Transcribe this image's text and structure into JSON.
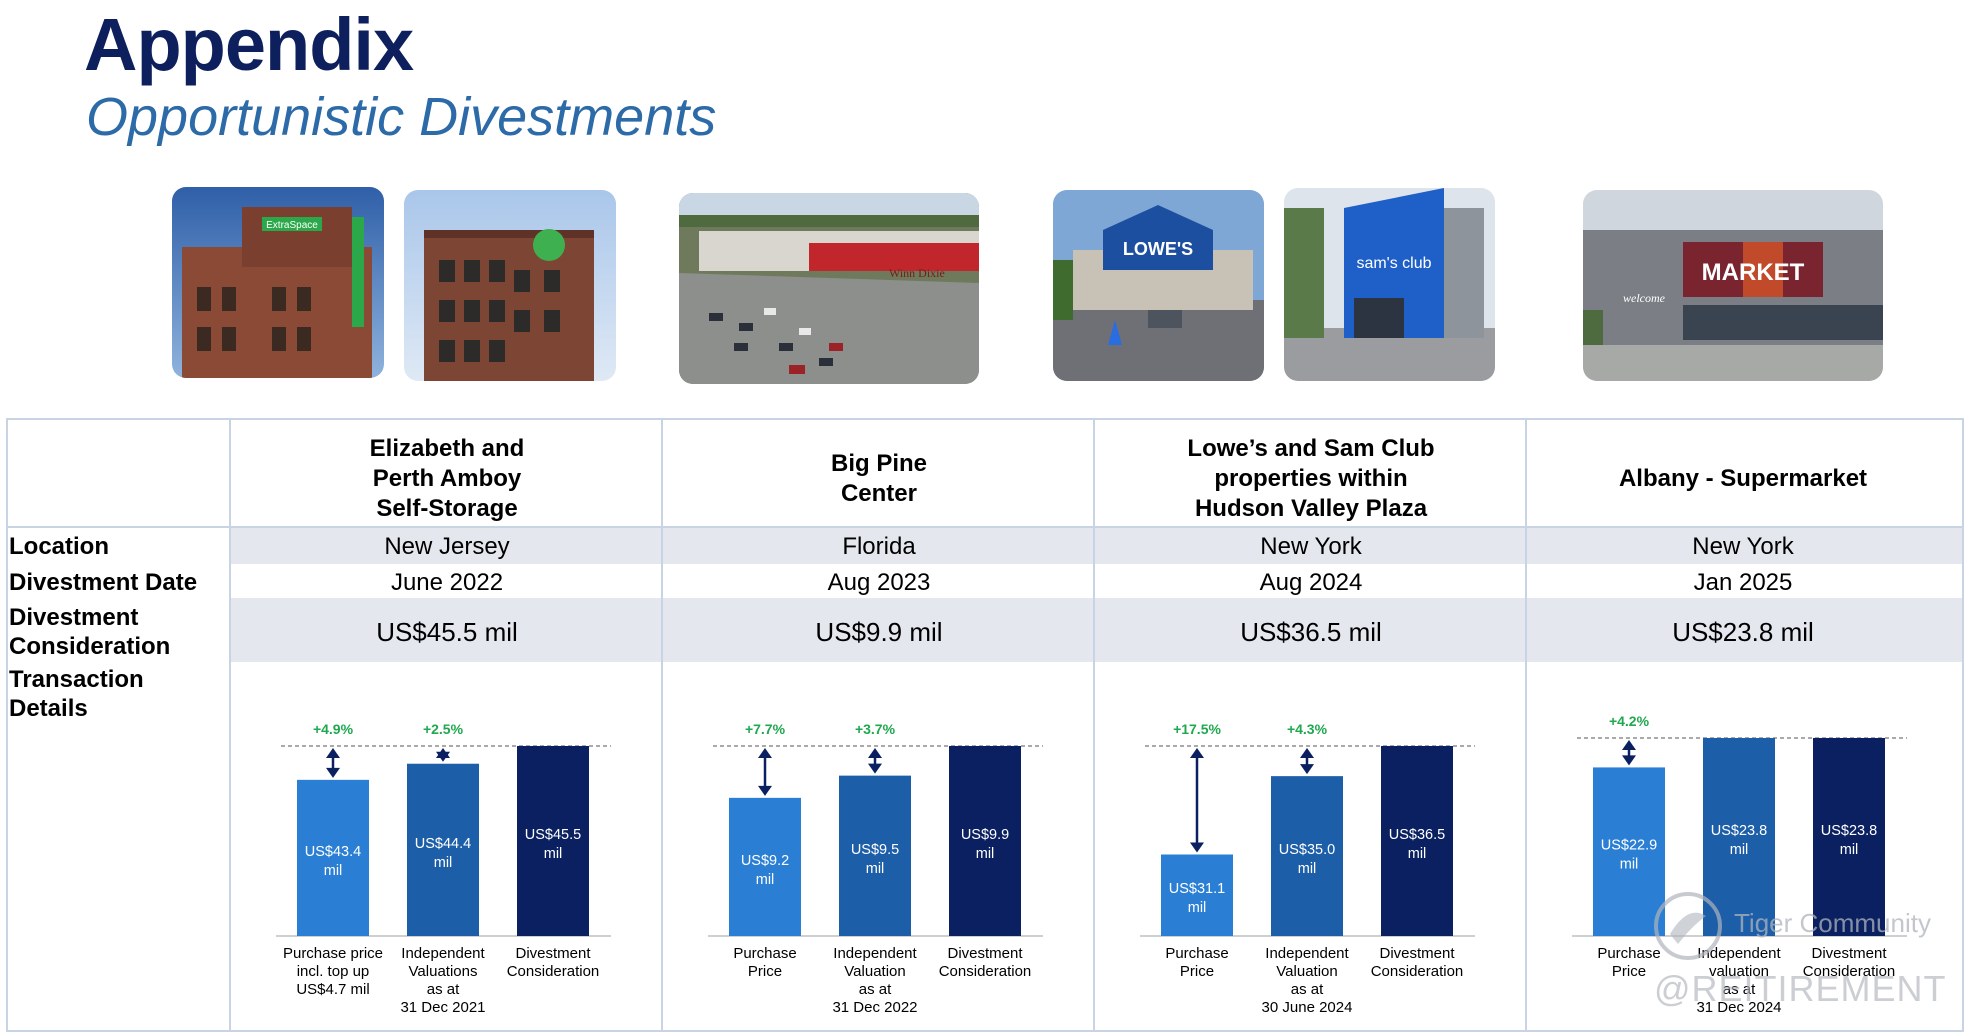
{
  "header": {
    "title": "Appendix",
    "subtitle": "Opportunistic Divestments"
  },
  "row_labels": {
    "location": "Location",
    "date": "Divestment Date",
    "consideration": "Divestment\nConsideration",
    "details": "Transaction\nDetails"
  },
  "photos": {
    "storage1_sign": "ExtraSpace",
    "market_sign": "MARKET",
    "market_welcome": "welcome",
    "lowes_sign": "LOWE'S",
    "sams_sign": "sam's club",
    "winndixie_sign": "Winn Dixie"
  },
  "properties": [
    {
      "name": "Elizabeth and\nPerth Amboy\nSelf-Storage",
      "location": "New Jersey",
      "date": "June 2022",
      "consideration": "US$45.5 mil",
      "chart_data": {
        "type": "bar",
        "categories": [
          "Purchase price\nincl. top up\nUS$4.7 mil",
          "Independent\nValuations\nas at\n31 Dec 2021",
          "Divestment\nConsideration"
        ],
        "values": [
          43.4,
          44.4,
          45.5
        ],
        "value_labels": [
          "US$43.4\nmil",
          "US$44.4\nmil",
          "US$45.5\nmil"
        ],
        "premiums": [
          "+4.9%",
          "+2.5%"
        ],
        "ylim": [
          0,
          45.5
        ],
        "colors": [
          "#2a7fd4",
          "#1d5ea8",
          "#0a2060"
        ]
      }
    },
    {
      "name": "Big Pine\nCenter",
      "location": "Florida",
      "date": "Aug 2023",
      "consideration": "US$9.9 mil",
      "chart_data": {
        "type": "bar",
        "categories": [
          "Purchase\nPrice",
          "Independent\nValuation\nas at\n31 Dec 2022",
          "Divestment\nConsideration"
        ],
        "values": [
          9.2,
          9.5,
          9.9
        ],
        "value_labels": [
          "US$9.2\nmil",
          "US$9.5\nmil",
          "US$9.9\nmil"
        ],
        "premiums": [
          "+7.7%",
          "+3.7%"
        ],
        "ylim": [
          0,
          9.9
        ],
        "colors": [
          "#2a7fd4",
          "#1d5ea8",
          "#0a2060"
        ]
      }
    },
    {
      "name": "Lowe’s and Sam Club\nproperties within\nHudson Valley Plaza",
      "location": "New York",
      "date": "Aug 2024",
      "consideration": "US$36.5 mil",
      "chart_data": {
        "type": "bar",
        "categories": [
          "Purchase\nPrice",
          "Independent\nValuation\nas at\n30 June 2024",
          "Divestment\nConsideration"
        ],
        "values": [
          31.1,
          35.0,
          36.5
        ],
        "value_labels": [
          "US$31.1\nmil",
          "US$35.0\nmil",
          "US$36.5\nmil"
        ],
        "premiums": [
          "+17.5%",
          "+4.3%"
        ],
        "ylim": [
          0,
          36.5
        ],
        "colors": [
          "#2a7fd4",
          "#1d5ea8",
          "#0a2060"
        ]
      }
    },
    {
      "name": "Albany - Supermarket",
      "location": "New York",
      "date": "Jan 2025",
      "consideration": "US$23.8 mil",
      "chart_data": {
        "type": "bar",
        "categories": [
          "Purchase\nPrice",
          "Independent\nvaluation\nas at\n31 Dec 2024",
          "Divestment\nConsideration"
        ],
        "values": [
          22.9,
          23.8,
          23.8
        ],
        "value_labels": [
          "US$22.9\nmil",
          "US$23.8\nmil",
          "US$23.8\nmil"
        ],
        "premiums": [
          "+4.2%"
        ],
        "ylim": [
          0,
          23.8
        ],
        "colors": [
          "#2a7fd4",
          "#1d5ea8",
          "#0a2060"
        ]
      }
    }
  ],
  "watermark": {
    "line1": "Tiger Community",
    "line2": "@REITIREMENT"
  }
}
